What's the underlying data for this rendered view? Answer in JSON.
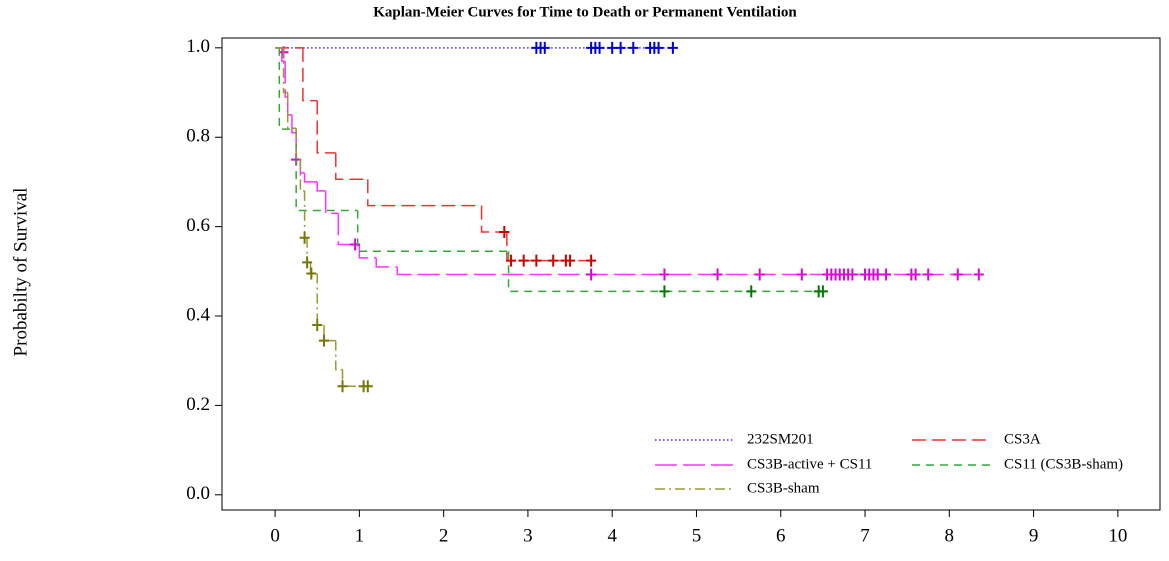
{
  "chart_data": {
    "type": "km",
    "title": "Kaplan-Meier Curves for Time to Death or Permanent Ventilation",
    "y_label": "Probabilty of Survival",
    "xlim": [
      -0.63,
      10.5
    ],
    "ylim": [
      -0.034,
      1.022
    ],
    "xticks": [
      0,
      1,
      2,
      3,
      4,
      5,
      6,
      7,
      8,
      9,
      10
    ],
    "yticks": [
      {
        "value": 0,
        "label": "0.0"
      },
      0.2,
      0.4,
      0.6,
      0.8,
      {
        "value": 1,
        "label": "1.0"
      }
    ],
    "series": [
      {
        "name": "232SM201",
        "color": "#3333ff",
        "dash": "1.5,2.5",
        "censor_color": "#0000cc",
        "x": [
          0,
          4.72
        ],
        "values": [
          1,
          1
        ],
        "censor_x": [
          3.1,
          3.15,
          3.2,
          3.75,
          3.8,
          3.85,
          4.0,
          4.1,
          4.25,
          4.45,
          4.5,
          4.55,
          4.72
        ],
        "censor_values": [
          1,
          1,
          1,
          1,
          1,
          1,
          1,
          1,
          1,
          1,
          1,
          1,
          1
        ]
      },
      {
        "name": "CS3A",
        "color": "#ee3333",
        "dash": "14,6",
        "censor_color": "#cc0000",
        "x": [
          0,
          0.33,
          0.5,
          0.72,
          1.1,
          2.45,
          2.75,
          3.75
        ],
        "values": [
          1,
          0.882,
          0.765,
          0.706,
          0.647,
          0.588,
          0.524,
          0.524
        ],
        "censor_x": [
          2.72,
          2.8,
          2.95,
          3.1,
          3.3,
          3.45,
          3.5,
          3.75
        ],
        "censor_values": [
          0.588,
          0.524,
          0.524,
          0.524,
          0.524,
          0.524,
          0.524,
          0.524
        ]
      },
      {
        "name": "CS3B-active + CS11",
        "color": "#ff33ff",
        "dash": "22,6",
        "censor_color": "#dd00dd",
        "x": [
          0,
          0.08,
          0.12,
          0.15,
          0.2,
          0.25,
          0.3,
          0.35,
          0.5,
          0.6,
          0.75,
          1.0,
          1.2,
          1.45,
          8.35
        ],
        "values": [
          1,
          0.97,
          0.89,
          0.85,
          0.81,
          0.75,
          0.72,
          0.7,
          0.68,
          0.63,
          0.56,
          0.53,
          0.51,
          0.493,
          0.493
        ],
        "censor_x": [
          0.1,
          0.25,
          0.95,
          3.75,
          4.62,
          5.25,
          5.75,
          6.25,
          6.55,
          6.6,
          6.65,
          6.7,
          6.75,
          6.8,
          6.85,
          7.0,
          7.05,
          7.1,
          7.15,
          7.25,
          7.55,
          7.6,
          7.75,
          8.1,
          8.35
        ],
        "censor_values": [
          0.99,
          0.75,
          0.56,
          0.493,
          0.493,
          0.493,
          0.493,
          0.493,
          0.493,
          0.493,
          0.493,
          0.493,
          0.493,
          0.493,
          0.493,
          0.493,
          0.493,
          0.493,
          0.493,
          0.493,
          0.493,
          0.493,
          0.493,
          0.493,
          0.493
        ]
      },
      {
        "name": "CS11 (CS3B-sham)",
        "color": "#33aa33",
        "dash": "8,6",
        "censor_color": "#007700",
        "x": [
          0,
          0.05,
          0.25,
          0.98,
          2.77,
          6.5
        ],
        "values": [
          1,
          0.818,
          0.636,
          0.545,
          0.455,
          0.455
        ],
        "censor_x": [
          4.62,
          5.65,
          6.45,
          6.5
        ],
        "censor_values": [
          0.455,
          0.455,
          0.455,
          0.455
        ]
      },
      {
        "name": "CS3B-sham",
        "color": "#999933",
        "dash": "10,4,2,4",
        "censor_color": "#777700",
        "x": [
          0,
          0.1,
          0.15,
          0.25,
          0.3,
          0.35,
          0.38,
          0.42,
          0.5,
          0.58,
          0.72,
          0.8,
          1.1
        ],
        "values": [
          1,
          0.9,
          0.82,
          0.75,
          0.68,
          0.575,
          0.52,
          0.495,
          0.38,
          0.345,
          0.28,
          0.243,
          0.243
        ],
        "censor_x": [
          0.35,
          0.38,
          0.43,
          0.5,
          0.58,
          0.8,
          1.05,
          1.1
        ],
        "censor_values": [
          0.575,
          0.52,
          0.495,
          0.38,
          0.345,
          0.243,
          0.243,
          0.243
        ]
      }
    ]
  }
}
